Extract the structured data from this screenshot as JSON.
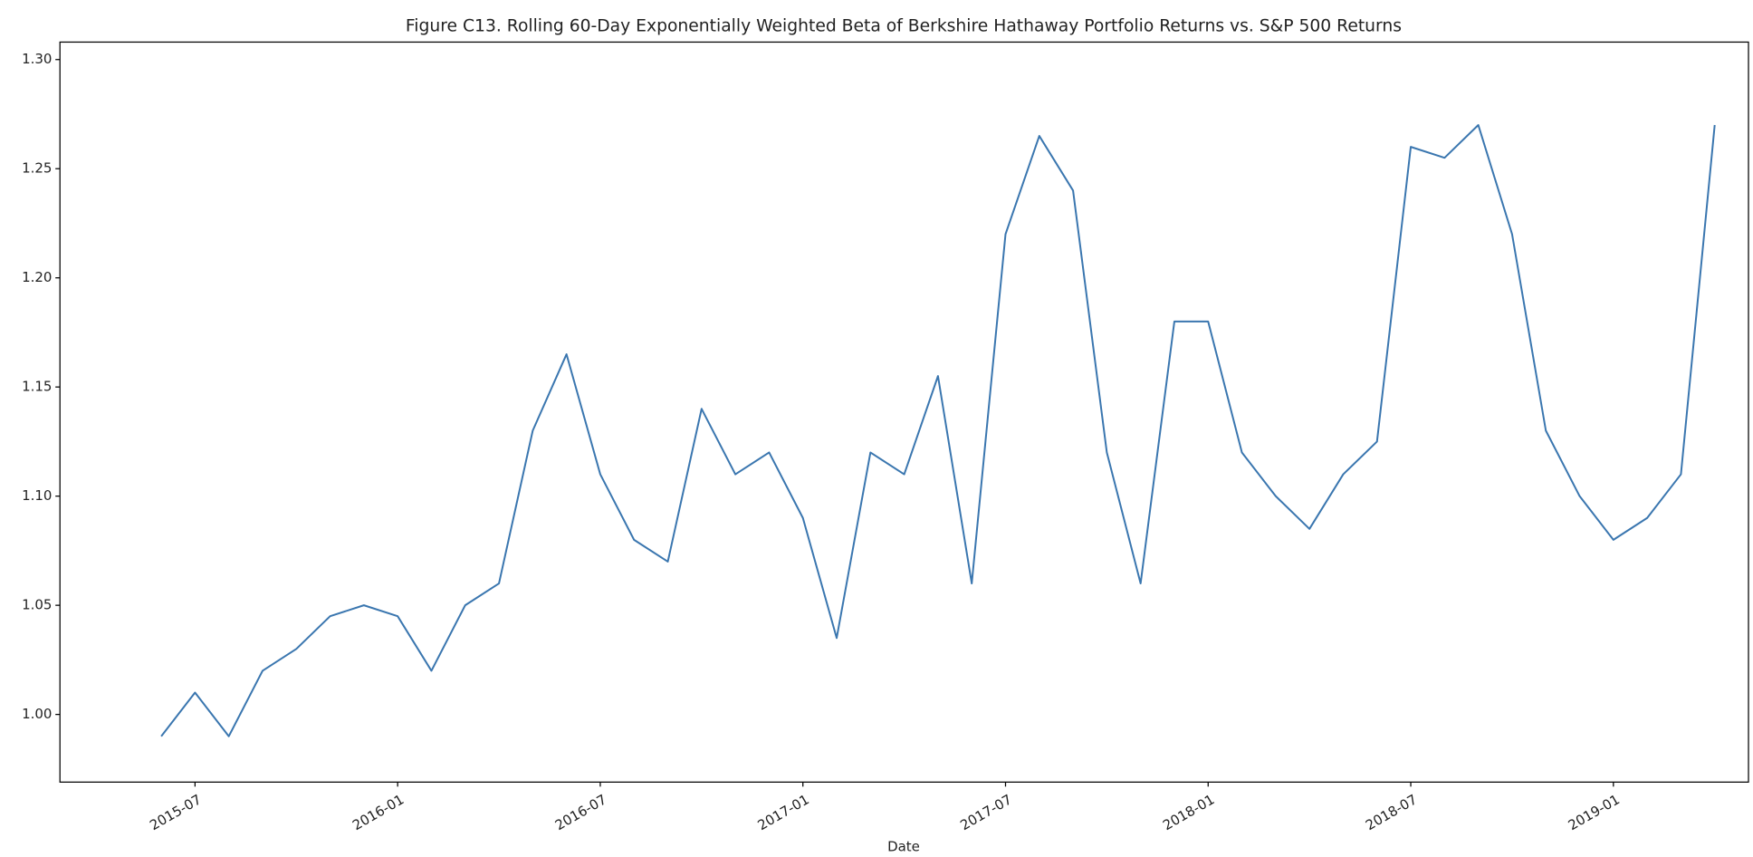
{
  "chart_data": {
    "type": "line",
    "title": "Figure C13. Rolling 60-Day Exponentially Weighted Beta of Berkshire Hathaway Portfolio Returns vs. S&P 500 Returns",
    "x_label": "Date",
    "color": "#3a76af",
    "x": [
      "2015-06",
      "2015-07",
      "2015-08",
      "2015-09",
      "2015-10",
      "2015-11",
      "2015-12",
      "2016-01",
      "2016-02",
      "2016-03",
      "2016-04",
      "2016-05",
      "2016-06",
      "2016-07",
      "2016-08",
      "2016-09",
      "2016-10",
      "2016-11",
      "2016-12",
      "2017-01",
      "2017-02",
      "2017-03",
      "2017-04",
      "2017-05",
      "2017-06",
      "2017-07",
      "2017-08",
      "2017-09",
      "2017-10",
      "2017-11",
      "2017-12",
      "2018-01",
      "2018-02",
      "2018-03",
      "2018-04",
      "2018-05",
      "2018-06",
      "2018-07",
      "2018-08",
      "2018-09",
      "2018-10",
      "2018-11",
      "2018-12",
      "2019-01",
      "2019-02",
      "2019-03",
      "2019-04"
    ],
    "values": [
      0.99,
      1.01,
      0.99,
      1.02,
      1.03,
      1.045,
      1.05,
      1.045,
      1.02,
      1.05,
      1.06,
      1.13,
      1.165,
      1.11,
      1.08,
      1.07,
      1.14,
      1.11,
      1.12,
      1.09,
      1.035,
      1.12,
      1.11,
      1.155,
      1.06,
      1.22,
      1.265,
      1.24,
      1.12,
      1.06,
      1.18,
      1.18,
      1.12,
      1.1,
      1.085,
      1.11,
      1.125,
      1.26,
      1.255,
      1.27,
      1.22,
      1.13,
      1.1,
      1.08,
      1.09,
      1.11,
      1.27
    ],
    "xlim": [
      "2015-03",
      "2019-05"
    ],
    "xticks": [
      "2015-07",
      "2016-01",
      "2016-07",
      "2017-01",
      "2017-07",
      "2018-01",
      "2018-07",
      "2019-01"
    ],
    "ylim": [
      0.969,
      1.308
    ],
    "yticks": [
      {
        "value": 1,
        "label": "1.00"
      },
      1.05,
      {
        "value": 1.1,
        "label": "1.10"
      },
      1.15,
      {
        "value": 1.2,
        "label": "1.20"
      },
      1.25,
      {
        "value": 1.3,
        "label": "1.30"
      }
    ],
    "grid": false
  }
}
